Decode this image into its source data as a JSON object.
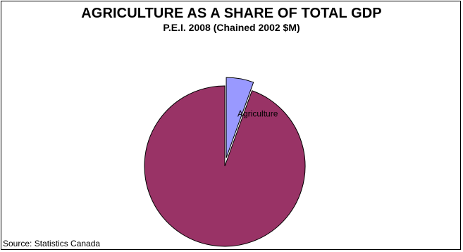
{
  "chart_data": {
    "type": "pie",
    "title": "AGRICULTURE AS A SHARE OF TOTAL GDP",
    "subtitle": "P.E.I. 2008 (Chained 2002 $M)",
    "categories": [
      "Agriculture",
      ""
    ],
    "values": [
      5.5,
      94.5
    ],
    "unit": "percent of total GDP",
    "colors": [
      "#9999ff",
      "#993366"
    ],
    "exploded": [
      true,
      false
    ],
    "data_labels": [
      "Agriculture",
      ""
    ],
    "legend": "none",
    "source": "Source: Statistics Canada"
  }
}
